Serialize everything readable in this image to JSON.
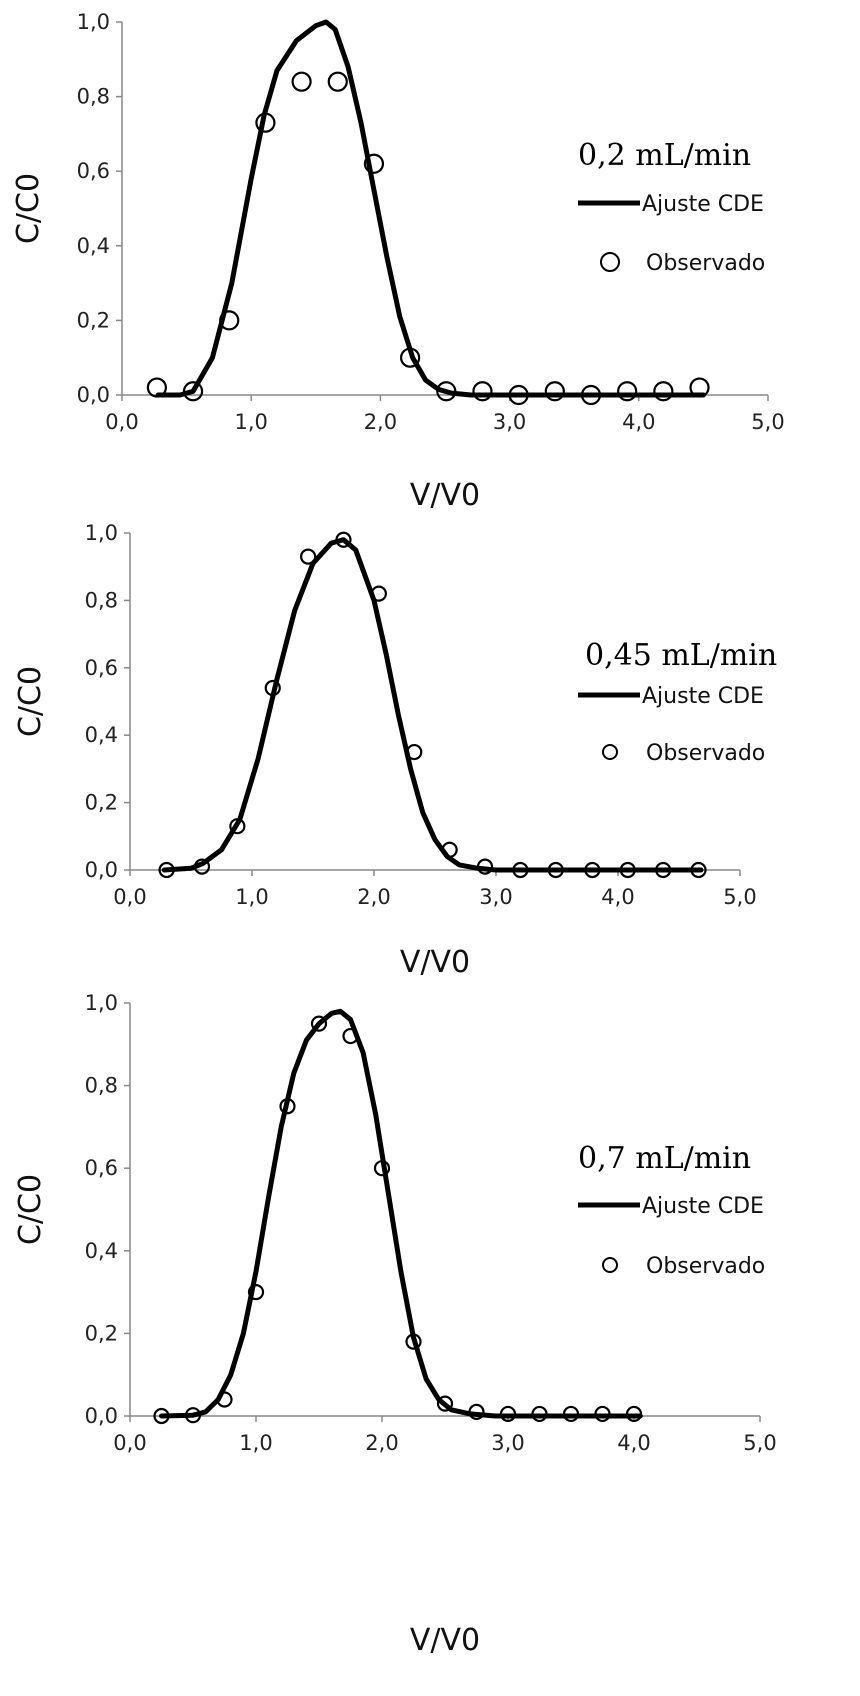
{
  "chart_data": [
    {
      "type": "line",
      "title": "0,2 mL/min",
      "xlabel": "V/V0",
      "ylabel": "C/C0",
      "xlim": [
        0,
        5
      ],
      "ylim": [
        0,
        1
      ],
      "x_ticks": [
        "0,0",
        "1,0",
        "2,0",
        "3,0",
        "4,0",
        "5,0"
      ],
      "y_ticks": [
        "0,0",
        "0,2",
        "0,4",
        "0,6",
        "0,8",
        "1,0"
      ],
      "legend": [
        "Ajuste CDE",
        "Observado"
      ],
      "legend_position": "right",
      "series": [
        {
          "name": "Ajuste CDE",
          "kind": "line",
          "x": [
            0.28,
            0.45,
            0.55,
            0.7,
            0.85,
            1.0,
            1.1,
            1.2,
            1.35,
            1.5,
            1.58,
            1.65,
            1.75,
            1.85,
            1.95,
            2.05,
            2.15,
            2.25,
            2.35,
            2.45,
            2.55,
            2.7,
            3.0,
            3.5,
            4.0,
            4.5
          ],
          "y": [
            0.0,
            0.0,
            0.01,
            0.1,
            0.3,
            0.58,
            0.75,
            0.87,
            0.95,
            0.99,
            1.0,
            0.98,
            0.88,
            0.73,
            0.55,
            0.37,
            0.21,
            0.1,
            0.04,
            0.015,
            0.005,
            0.0,
            0.0,
            0.0,
            0.0,
            0.0
          ]
        },
        {
          "name": "Observado",
          "kind": "scatter",
          "x": [
            0.27,
            0.55,
            0.83,
            1.11,
            1.39,
            1.67,
            1.95,
            2.23,
            2.51,
            2.79,
            3.07,
            3.35,
            3.63,
            3.91,
            4.19,
            4.47
          ],
          "y": [
            0.02,
            0.01,
            0.2,
            0.73,
            0.84,
            0.84,
            0.62,
            0.1,
            0.01,
            0.01,
            0.0,
            0.01,
            0.0,
            0.01,
            0.01,
            0.02
          ]
        }
      ]
    },
    {
      "type": "line",
      "title": "0,45 mL/min",
      "xlabel": "V/V0",
      "ylabel": "C/C0",
      "xlim": [
        0,
        5
      ],
      "ylim": [
        0,
        1
      ],
      "x_ticks": [
        "0,0",
        "1,0",
        "2,0",
        "3,0",
        "4,0",
        "5,0"
      ],
      "y_ticks": [
        "0,0",
        "0,2",
        "0,4",
        "0,6",
        "0,8",
        "1,0"
      ],
      "legend": [
        "Ajuste CDE",
        "Observado"
      ],
      "legend_position": "right",
      "series": [
        {
          "name": "Ajuste CDE",
          "kind": "line",
          "x": [
            0.28,
            0.5,
            0.6,
            0.75,
            0.9,
            1.05,
            1.2,
            1.35,
            1.5,
            1.65,
            1.75,
            1.85,
            2.0,
            2.1,
            2.2,
            2.3,
            2.4,
            2.5,
            2.6,
            2.7,
            2.85,
            3.0,
            3.5,
            4.0,
            4.68
          ],
          "y": [
            0.0,
            0.005,
            0.02,
            0.06,
            0.15,
            0.33,
            0.56,
            0.77,
            0.91,
            0.97,
            0.98,
            0.95,
            0.8,
            0.64,
            0.46,
            0.3,
            0.17,
            0.09,
            0.04,
            0.015,
            0.005,
            0.0,
            0.0,
            0.0,
            0.0
          ]
        },
        {
          "name": "Observado",
          "kind": "scatter",
          "x": [
            0.3,
            0.59,
            0.88,
            1.17,
            1.46,
            1.75,
            2.04,
            2.33,
            2.62,
            2.91,
            3.2,
            3.49,
            3.79,
            4.08,
            4.37,
            4.66
          ],
          "y": [
            0.0,
            0.01,
            0.13,
            0.54,
            0.93,
            0.98,
            0.82,
            0.35,
            0.06,
            0.01,
            0.0,
            0.0,
            0.0,
            0.0,
            0.0,
            0.0
          ]
        }
      ]
    },
    {
      "type": "line",
      "title": "0,7 mL/min",
      "xlabel": "V/V0",
      "ylabel": "C/C0",
      "xlim": [
        0,
        5
      ],
      "ylim": [
        0,
        1
      ],
      "x_ticks": [
        "0,0",
        "1,0",
        "2,0",
        "3,0",
        "4,0",
        "5,0"
      ],
      "y_ticks": [
        "0,0",
        "0,2",
        "0,4",
        "0,6",
        "0,8",
        "1,0"
      ],
      "legend": [
        "Ajuste CDE",
        "Observado"
      ],
      "legend_position": "right",
      "series": [
        {
          "name": "Ajuste CDE",
          "kind": "line",
          "x": [
            0.25,
            0.5,
            0.6,
            0.7,
            0.8,
            0.9,
            1.0,
            1.1,
            1.2,
            1.3,
            1.4,
            1.5,
            1.6,
            1.67,
            1.75,
            1.85,
            1.95,
            2.05,
            2.15,
            2.25,
            2.35,
            2.45,
            2.55,
            2.7,
            2.9,
            3.2,
            3.6,
            4.05
          ],
          "y": [
            0.0,
            0.002,
            0.01,
            0.04,
            0.1,
            0.2,
            0.35,
            0.53,
            0.7,
            0.83,
            0.91,
            0.95,
            0.975,
            0.98,
            0.96,
            0.88,
            0.73,
            0.54,
            0.35,
            0.19,
            0.09,
            0.04,
            0.015,
            0.005,
            0.0,
            0.0,
            0.0,
            0.0
          ]
        },
        {
          "name": "Observado",
          "kind": "scatter",
          "x": [
            0.25,
            0.5,
            0.75,
            1.0,
            1.25,
            1.5,
            1.75,
            2.0,
            2.25,
            2.5,
            2.75,
            3.0,
            3.25,
            3.5,
            3.75,
            4.0
          ],
          "y": [
            0.0,
            0.002,
            0.04,
            0.3,
            0.75,
            0.95,
            0.92,
            0.6,
            0.18,
            0.03,
            0.01,
            0.005,
            0.005,
            0.005,
            0.005,
            0.005
          ]
        }
      ]
    }
  ]
}
